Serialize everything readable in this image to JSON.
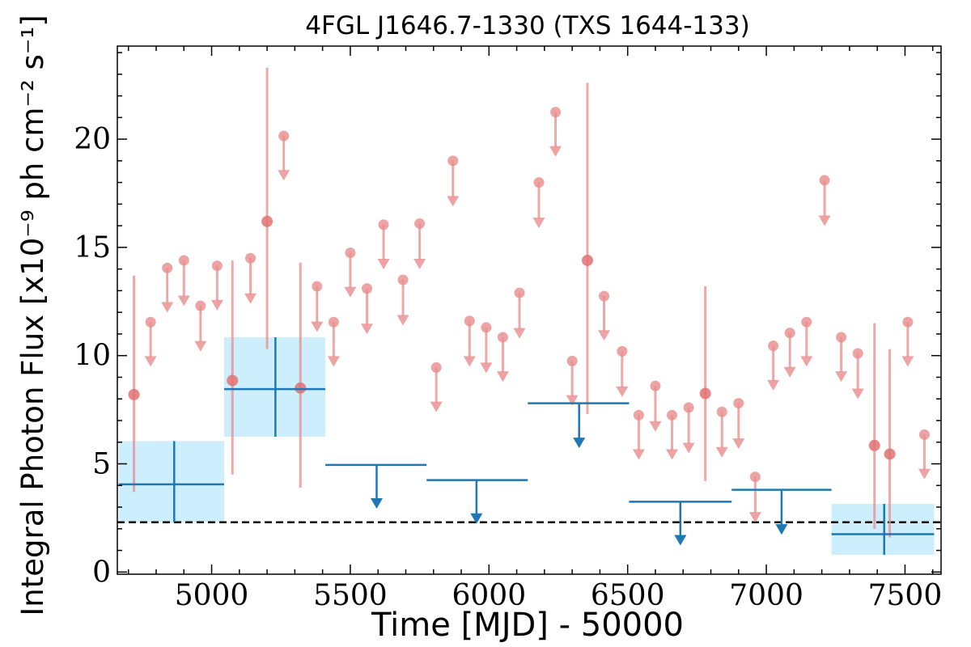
{
  "chart_data": {
    "type": "scatter",
    "title": "4FGL J1646.7-1330 (TXS 1644-133)",
    "xlabel": "Time [MJD] - 50000",
    "ylabel": "Integral Photon Flux [x10⁻⁹ ph cm⁻² s⁻¹]",
    "xlim": [
      4660,
      7630
    ],
    "ylim": [
      -0.1,
      24.3
    ],
    "x_ticks": [
      5000,
      5500,
      6000,
      6500,
      7000,
      7500
    ],
    "x_tick_labels": [
      "5000",
      "5500",
      "6000",
      "6500",
      "7000",
      "7500"
    ],
    "y_ticks": [
      0,
      5,
      10,
      15,
      20
    ],
    "y_tick_labels": [
      "0",
      "5",
      "10",
      "15",
      "20"
    ],
    "grid": false,
    "reference_line": {
      "y": 2.3,
      "style": "dashed",
      "color": "#000000"
    },
    "series": [
      {
        "color": "#e88c8c",
        "marker": "circle",
        "detections": [
          {
            "x": 4720,
            "y": 8.2,
            "y_low": 3.7,
            "y_high": 13.7
          },
          {
            "x": 5075,
            "y": 8.85,
            "y_low": 4.5,
            "y_high": 14.4
          },
          {
            "x": 5200,
            "y": 16.2,
            "y_low": 10.3,
            "y_high": 23.3
          },
          {
            "x": 5320,
            "y": 8.5,
            "y_low": 3.9,
            "y_high": 14.3
          },
          {
            "x": 6355,
            "y": 14.4,
            "y_low": 7.3,
            "y_high": 22.6
          },
          {
            "x": 6780,
            "y": 8.25,
            "y_low": 4.2,
            "y_high": 13.2
          },
          {
            "x": 7390,
            "y": 5.85,
            "y_low": 2.0,
            "y_high": 11.5
          },
          {
            "x": 7445,
            "y": 5.45,
            "y_low": 1.6,
            "y_high": 10.3
          }
        ],
        "upper_limits": [
          {
            "x": 4780,
            "y": 11.55,
            "arrow_to": 9.6
          },
          {
            "x": 4840,
            "y": 14.05,
            "arrow_to": 12.1
          },
          {
            "x": 4900,
            "y": 14.4,
            "arrow_to": 12.4
          },
          {
            "x": 4960,
            "y": 12.3,
            "arrow_to": 10.3
          },
          {
            "x": 5020,
            "y": 14.15,
            "arrow_to": 12.2
          },
          {
            "x": 5140,
            "y": 14.5,
            "arrow_to": 12.5
          },
          {
            "x": 5260,
            "y": 20.15,
            "arrow_to": 18.2
          },
          {
            "x": 5380,
            "y": 13.2,
            "arrow_to": 11.2
          },
          {
            "x": 5440,
            "y": 11.55,
            "arrow_to": 9.6
          },
          {
            "x": 5500,
            "y": 14.75,
            "arrow_to": 12.8
          },
          {
            "x": 5560,
            "y": 13.1,
            "arrow_to": 11.1
          },
          {
            "x": 5620,
            "y": 16.05,
            "arrow_to": 14.1
          },
          {
            "x": 5690,
            "y": 13.5,
            "arrow_to": 11.5
          },
          {
            "x": 5750,
            "y": 16.1,
            "arrow_to": 14.1
          },
          {
            "x": 5810,
            "y": 9.45,
            "arrow_to": 7.5
          },
          {
            "x": 5870,
            "y": 19.0,
            "arrow_to": 17.0
          },
          {
            "x": 5930,
            "y": 11.6,
            "arrow_to": 9.6
          },
          {
            "x": 5990,
            "y": 11.3,
            "arrow_to": 9.3
          },
          {
            "x": 6050,
            "y": 10.85,
            "arrow_to": 8.9
          },
          {
            "x": 6110,
            "y": 12.9,
            "arrow_to": 10.9
          },
          {
            "x": 6180,
            "y": 18.0,
            "arrow_to": 16.0
          },
          {
            "x": 6240,
            "y": 21.25,
            "arrow_to": 19.3
          },
          {
            "x": 6300,
            "y": 9.75,
            "arrow_to": 7.8
          },
          {
            "x": 6415,
            "y": 12.75,
            "arrow_to": 10.8
          },
          {
            "x": 6480,
            "y": 10.2,
            "arrow_to": 8.2
          },
          {
            "x": 6540,
            "y": 7.25,
            "arrow_to": 5.3
          },
          {
            "x": 6600,
            "y": 8.6,
            "arrow_to": 6.6
          },
          {
            "x": 6660,
            "y": 7.25,
            "arrow_to": 5.3
          },
          {
            "x": 6720,
            "y": 7.6,
            "arrow_to": 5.6
          },
          {
            "x": 6840,
            "y": 7.4,
            "arrow_to": 5.4
          },
          {
            "x": 6900,
            "y": 7.8,
            "arrow_to": 5.8
          },
          {
            "x": 6960,
            "y": 4.4,
            "arrow_to": 2.4
          },
          {
            "x": 7025,
            "y": 10.45,
            "arrow_to": 8.5
          },
          {
            "x": 7085,
            "y": 11.05,
            "arrow_to": 9.1
          },
          {
            "x": 7145,
            "y": 11.55,
            "arrow_to": 9.6
          },
          {
            "x": 7210,
            "y": 18.1,
            "arrow_to": 16.1
          },
          {
            "x": 7270,
            "y": 10.85,
            "arrow_to": 8.9
          },
          {
            "x": 7330,
            "y": 10.1,
            "arrow_to": 8.1
          },
          {
            "x": 7510,
            "y": 11.55,
            "arrow_to": 9.6
          },
          {
            "x": 7570,
            "y": 6.35,
            "arrow_to": 4.4
          }
        ]
      },
      {
        "color": "#1f77b4",
        "band_color": "#cdeefc",
        "detections": [
          {
            "x": 4865,
            "x_low": 4665,
            "x_high": 5045,
            "y": 4.05,
            "y_low": 2.3,
            "y_high": 6.05
          },
          {
            "x": 5230,
            "x_low": 5045,
            "x_high": 5410,
            "y": 8.45,
            "y_low": 6.25,
            "y_high": 10.85
          },
          {
            "x": 7425,
            "x_low": 7235,
            "x_high": 7605,
            "y": 1.75,
            "y_low": 0.8,
            "y_high": 3.15
          }
        ],
        "upper_limits": [
          {
            "x": 5595,
            "x_low": 5410,
            "x_high": 5775,
            "y": 4.95,
            "arrow_to": 3.0
          },
          {
            "x": 5955,
            "x_low": 5775,
            "x_high": 6140,
            "y": 4.25,
            "arrow_to": 2.3
          },
          {
            "x": 6325,
            "x_low": 6140,
            "x_high": 6505,
            "y": 7.8,
            "arrow_to": 5.8
          },
          {
            "x": 6690,
            "x_low": 6505,
            "x_high": 6875,
            "y": 3.25,
            "arrow_to": 1.3
          },
          {
            "x": 7055,
            "x_low": 6875,
            "x_high": 7235,
            "y": 3.8,
            "arrow_to": 1.8
          }
        ]
      }
    ]
  }
}
